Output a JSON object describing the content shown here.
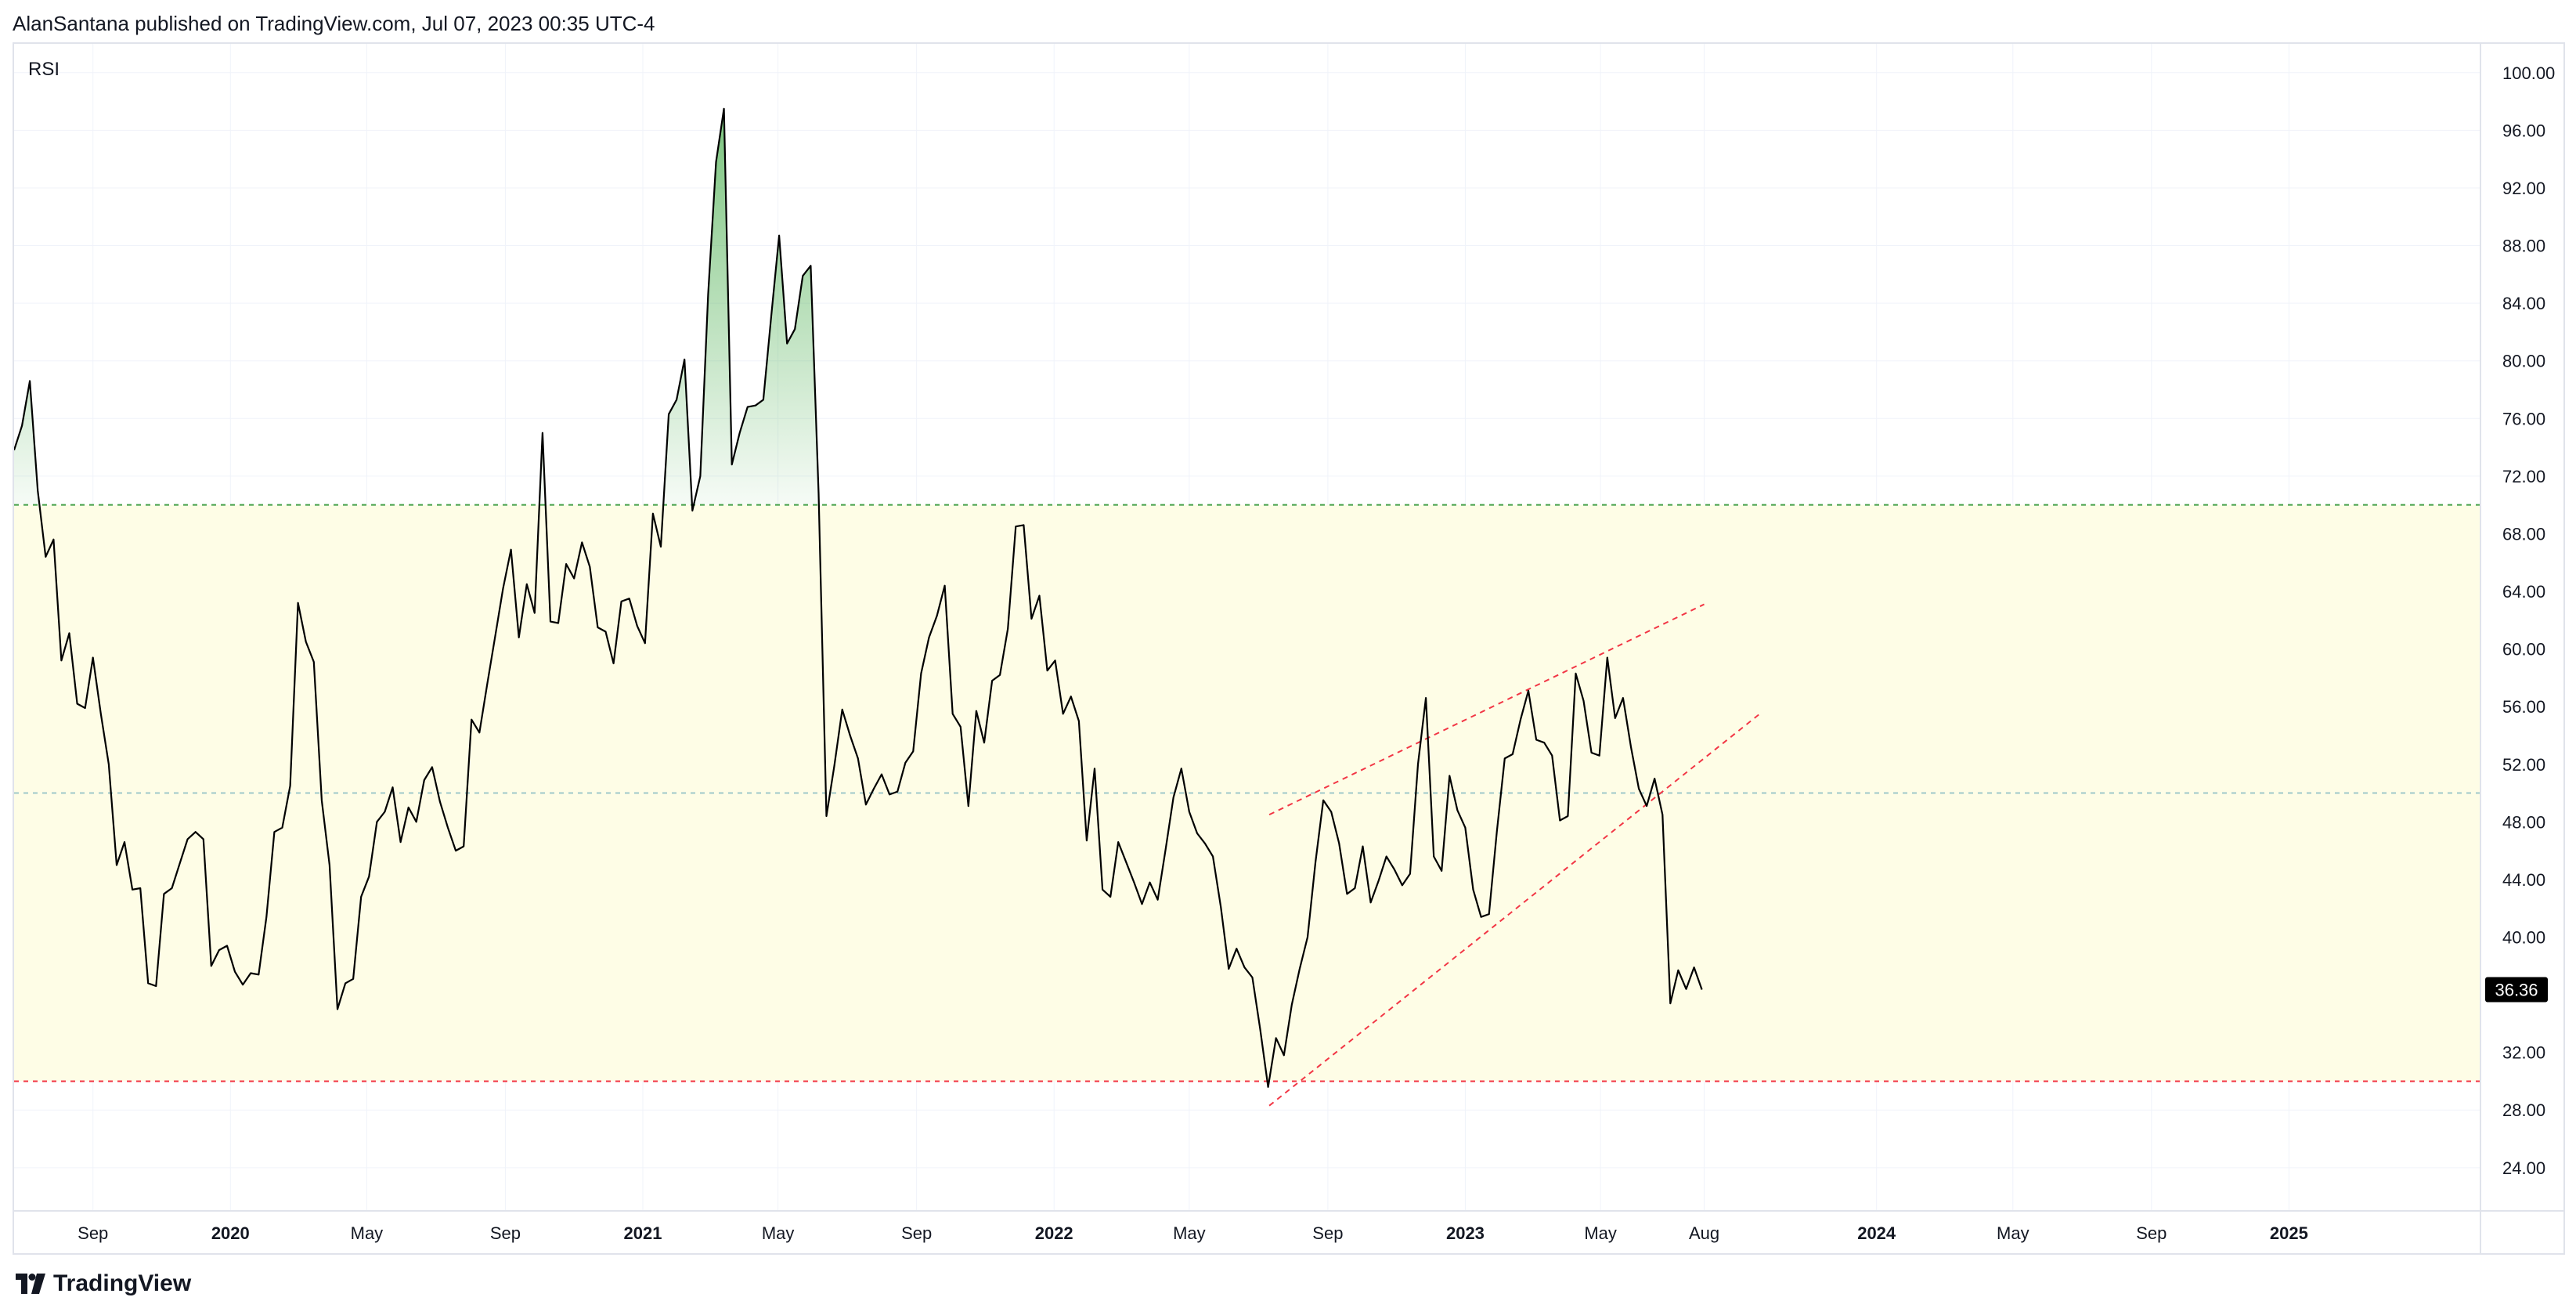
{
  "header": {
    "published_text": "AlanSantana published on TradingView.com, Jul 07, 2023 00:35 UTC-4"
  },
  "footer": {
    "brand": "TradingView",
    "logo_icon": "tradingview-logo-icon"
  },
  "chart_data": {
    "type": "line",
    "indicator_label": "RSI",
    "y_range": [
      21,
      102
    ],
    "y_ticks": [
      100,
      96,
      92,
      88,
      84,
      80,
      76,
      72,
      68,
      64,
      60,
      56,
      52,
      48,
      44,
      40,
      36,
      32,
      28,
      24
    ],
    "y_tick_labels": [
      "100.00",
      "96.00",
      "92.00",
      "88.00",
      "84.00",
      "80.00",
      "76.00",
      "72.00",
      "68.00",
      "64.00",
      "60.00",
      "56.00",
      "52.00",
      "48.00",
      "44.00",
      "40.00",
      "36.00",
      "32.00",
      "28.00",
      "24.00"
    ],
    "x_range": [
      "2019-06-23",
      "2025-06-20"
    ],
    "x_ticks": [
      {
        "date": "2019-09-01",
        "label": "Sep",
        "major": false
      },
      {
        "date": "2020-01-01",
        "label": "2020",
        "major": true
      },
      {
        "date": "2020-05-01",
        "label": "May",
        "major": false
      },
      {
        "date": "2020-09-01",
        "label": "Sep",
        "major": false
      },
      {
        "date": "2021-01-01",
        "label": "2021",
        "major": true
      },
      {
        "date": "2021-05-01",
        "label": "May",
        "major": false
      },
      {
        "date": "2021-09-01",
        "label": "Sep",
        "major": false
      },
      {
        "date": "2022-01-01",
        "label": "2022",
        "major": true
      },
      {
        "date": "2022-05-01",
        "label": "May",
        "major": false
      },
      {
        "date": "2022-09-01",
        "label": "Sep",
        "major": false
      },
      {
        "date": "2023-01-01",
        "label": "2023",
        "major": true
      },
      {
        "date": "2023-05-01",
        "label": "May",
        "major": false
      },
      {
        "date": "2023-08-01",
        "label": "Aug",
        "major": false
      },
      {
        "date": "2024-01-01",
        "label": "2024",
        "major": true
      },
      {
        "date": "2024-05-01",
        "label": "May",
        "major": false
      },
      {
        "date": "2024-09-01",
        "label": "Sep",
        "major": false
      },
      {
        "date": "2025-01-01",
        "label": "2025",
        "major": true
      }
    ],
    "bands": {
      "upper": 70,
      "middle": 50,
      "lower": 30
    },
    "last_value": 36.36,
    "last_value_label": "36.36",
    "colors": {
      "line": "#000000",
      "band_fill": "#fefde6",
      "upper_line": "#43a047",
      "middle_line": "#9ec9c9",
      "lower_line": "#f23645",
      "overbought_fill": "#4caf50",
      "trendline": "#f23645",
      "last_value_bg": "#000000",
      "grid": "#f0f3fa"
    },
    "series": [
      {
        "values": [
          [
            "2019-06-23",
            73.8
          ],
          [
            "2019-06-30",
            75.5
          ],
          [
            "2019-07-07",
            78.6
          ],
          [
            "2019-07-14",
            71.0
          ],
          [
            "2019-07-21",
            66.4
          ],
          [
            "2019-07-28",
            67.6
          ],
          [
            "2019-08-04",
            59.2
          ],
          [
            "2019-08-11",
            61.1
          ],
          [
            "2019-08-18",
            56.2
          ],
          [
            "2019-08-25",
            55.9
          ],
          [
            "2019-09-01",
            59.4
          ],
          [
            "2019-09-08",
            55.5
          ],
          [
            "2019-09-15",
            52.0
          ],
          [
            "2019-09-22",
            45.0
          ],
          [
            "2019-09-29",
            46.6
          ],
          [
            "2019-10-06",
            43.3
          ],
          [
            "2019-10-13",
            43.4
          ],
          [
            "2019-10-20",
            36.8
          ],
          [
            "2019-10-27",
            36.6
          ],
          [
            "2019-11-03",
            43.0
          ],
          [
            "2019-11-10",
            43.4
          ],
          [
            "2019-11-17",
            45.1
          ],
          [
            "2019-11-24",
            46.8
          ],
          [
            "2019-12-01",
            47.3
          ],
          [
            "2019-12-08",
            46.8
          ],
          [
            "2019-12-15",
            38.0
          ],
          [
            "2019-12-22",
            39.1
          ],
          [
            "2019-12-29",
            39.4
          ],
          [
            "2020-01-05",
            37.6
          ],
          [
            "2020-01-12",
            36.7
          ],
          [
            "2020-01-19",
            37.5
          ],
          [
            "2020-01-26",
            37.4
          ],
          [
            "2020-02-02",
            41.4
          ],
          [
            "2020-02-09",
            47.3
          ],
          [
            "2020-02-16",
            47.6
          ],
          [
            "2020-02-23",
            50.5
          ],
          [
            "2020-03-01",
            63.2
          ],
          [
            "2020-03-08",
            60.5
          ],
          [
            "2020-03-15",
            59.1
          ],
          [
            "2020-03-22",
            49.5
          ],
          [
            "2020-03-29",
            45.0
          ],
          [
            "2020-04-05",
            35.0
          ],
          [
            "2020-04-12",
            36.8
          ],
          [
            "2020-04-19",
            37.1
          ],
          [
            "2020-04-26",
            42.8
          ],
          [
            "2020-05-03",
            44.2
          ],
          [
            "2020-05-10",
            48.0
          ],
          [
            "2020-05-17",
            48.7
          ],
          [
            "2020-05-24",
            50.4
          ],
          [
            "2020-05-31",
            46.6
          ],
          [
            "2020-06-07",
            49.0
          ],
          [
            "2020-06-14",
            48.0
          ],
          [
            "2020-06-21",
            50.9
          ],
          [
            "2020-06-28",
            51.8
          ],
          [
            "2020-07-05",
            49.4
          ],
          [
            "2020-07-12",
            47.6
          ],
          [
            "2020-07-19",
            46.0
          ],
          [
            "2020-07-26",
            46.3
          ],
          [
            "2020-08-02",
            55.1
          ],
          [
            "2020-08-09",
            54.2
          ],
          [
            "2020-08-16",
            57.6
          ],
          [
            "2020-08-23",
            60.9
          ],
          [
            "2020-08-30",
            64.2
          ],
          [
            "2020-09-06",
            66.9
          ],
          [
            "2020-09-13",
            60.8
          ],
          [
            "2020-09-20",
            64.5
          ],
          [
            "2020-09-27",
            62.5
          ],
          [
            "2020-10-04",
            75.0
          ],
          [
            "2020-10-11",
            61.9
          ],
          [
            "2020-10-18",
            61.8
          ],
          [
            "2020-10-25",
            65.9
          ],
          [
            "2020-11-01",
            64.9
          ],
          [
            "2020-11-08",
            67.4
          ],
          [
            "2020-11-15",
            65.7
          ],
          [
            "2020-11-22",
            61.5
          ],
          [
            "2020-11-29",
            61.2
          ],
          [
            "2020-12-06",
            59.0
          ],
          [
            "2020-12-13",
            63.3
          ],
          [
            "2020-12-20",
            63.5
          ],
          [
            "2020-12-27",
            61.6
          ],
          [
            "2021-01-03",
            60.4
          ],
          [
            "2021-01-10",
            69.4
          ],
          [
            "2021-01-17",
            67.1
          ],
          [
            "2021-01-24",
            76.3
          ],
          [
            "2021-01-31",
            77.3
          ],
          [
            "2021-02-07",
            80.1
          ],
          [
            "2021-02-14",
            69.6
          ],
          [
            "2021-02-21",
            72.0
          ],
          [
            "2021-02-28",
            84.6
          ],
          [
            "2021-03-07",
            93.8
          ],
          [
            "2021-03-14",
            97.5
          ],
          [
            "2021-03-21",
            72.8
          ],
          [
            "2021-03-28",
            75.0
          ],
          [
            "2021-04-04",
            76.8
          ],
          [
            "2021-04-11",
            76.9
          ],
          [
            "2021-04-18",
            77.3
          ],
          [
            "2021-04-25",
            83.1
          ],
          [
            "2021-05-02",
            88.7
          ],
          [
            "2021-05-09",
            81.2
          ],
          [
            "2021-05-16",
            82.2
          ],
          [
            "2021-05-23",
            85.9
          ],
          [
            "2021-05-30",
            86.6
          ],
          [
            "2021-06-06",
            70.8
          ],
          [
            "2021-06-13",
            48.4
          ],
          [
            "2021-06-20",
            51.9
          ],
          [
            "2021-06-27",
            55.8
          ],
          [
            "2021-07-04",
            54.0
          ],
          [
            "2021-07-11",
            52.4
          ],
          [
            "2021-07-18",
            49.2
          ],
          [
            "2021-07-25",
            50.3
          ],
          [
            "2021-08-01",
            51.3
          ],
          [
            "2021-08-08",
            49.9
          ],
          [
            "2021-08-15",
            50.1
          ],
          [
            "2021-08-22",
            52.1
          ],
          [
            "2021-08-29",
            52.9
          ],
          [
            "2021-09-05",
            58.3
          ],
          [
            "2021-09-12",
            60.8
          ],
          [
            "2021-09-19",
            62.3
          ],
          [
            "2021-09-26",
            64.4
          ],
          [
            "2021-10-03",
            55.5
          ],
          [
            "2021-10-10",
            54.6
          ],
          [
            "2021-10-17",
            49.1
          ],
          [
            "2021-10-24",
            55.7
          ],
          [
            "2021-10-31",
            53.5
          ],
          [
            "2021-11-07",
            57.8
          ],
          [
            "2021-11-14",
            58.2
          ],
          [
            "2021-11-21",
            61.4
          ],
          [
            "2021-11-28",
            68.5
          ],
          [
            "2021-12-05",
            68.6
          ],
          [
            "2021-12-12",
            62.1
          ],
          [
            "2021-12-19",
            63.7
          ],
          [
            "2021-12-26",
            58.5
          ],
          [
            "2022-01-02",
            59.2
          ],
          [
            "2022-01-09",
            55.5
          ],
          [
            "2022-01-16",
            56.7
          ],
          [
            "2022-01-23",
            55.0
          ],
          [
            "2022-01-30",
            46.7
          ],
          [
            "2022-02-06",
            51.7
          ],
          [
            "2022-02-13",
            43.3
          ],
          [
            "2022-02-20",
            42.8
          ],
          [
            "2022-02-27",
            46.6
          ],
          [
            "2022-03-06",
            45.2
          ],
          [
            "2022-03-13",
            43.8
          ],
          [
            "2022-03-20",
            42.3
          ],
          [
            "2022-03-27",
            43.8
          ],
          [
            "2022-04-03",
            42.6
          ],
          [
            "2022-04-10",
            46.1
          ],
          [
            "2022-04-17",
            49.7
          ],
          [
            "2022-04-24",
            51.7
          ],
          [
            "2022-05-01",
            48.7
          ],
          [
            "2022-05-08",
            47.2
          ],
          [
            "2022-05-15",
            46.5
          ],
          [
            "2022-05-22",
            45.6
          ],
          [
            "2022-05-29",
            42.1
          ],
          [
            "2022-06-05",
            37.8
          ],
          [
            "2022-06-12",
            39.2
          ],
          [
            "2022-06-19",
            37.9
          ],
          [
            "2022-06-26",
            37.2
          ],
          [
            "2022-07-03",
            33.6
          ],
          [
            "2022-07-10",
            29.6
          ],
          [
            "2022-07-17",
            33.0
          ],
          [
            "2022-07-24",
            31.8
          ],
          [
            "2022-07-31",
            35.3
          ],
          [
            "2022-08-07",
            37.8
          ],
          [
            "2022-08-14",
            40.0
          ],
          [
            "2022-08-21",
            45.2
          ],
          [
            "2022-08-28",
            49.5
          ],
          [
            "2022-09-04",
            48.7
          ],
          [
            "2022-09-11",
            46.5
          ],
          [
            "2022-09-18",
            43.0
          ],
          [
            "2022-09-25",
            43.4
          ],
          [
            "2022-10-02",
            46.3
          ],
          [
            "2022-10-09",
            42.4
          ],
          [
            "2022-10-16",
            43.9
          ],
          [
            "2022-10-23",
            45.6
          ],
          [
            "2022-10-30",
            44.7
          ],
          [
            "2022-11-06",
            43.6
          ],
          [
            "2022-11-13",
            44.4
          ],
          [
            "2022-11-20",
            52.0
          ],
          [
            "2022-11-27",
            56.6
          ],
          [
            "2022-12-04",
            45.6
          ],
          [
            "2022-12-11",
            44.6
          ],
          [
            "2022-12-18",
            51.2
          ],
          [
            "2022-12-25",
            48.8
          ],
          [
            "2023-01-01",
            47.6
          ],
          [
            "2023-01-08",
            43.3
          ],
          [
            "2023-01-15",
            41.4
          ],
          [
            "2023-01-22",
            41.6
          ],
          [
            "2023-01-29",
            47.3
          ],
          [
            "2023-02-05",
            52.4
          ],
          [
            "2023-02-12",
            52.7
          ],
          [
            "2023-02-19",
            55.1
          ],
          [
            "2023-02-26",
            57.1
          ],
          [
            "2023-03-05",
            53.7
          ],
          [
            "2023-03-12",
            53.5
          ],
          [
            "2023-03-19",
            52.6
          ],
          [
            "2023-03-26",
            48.1
          ],
          [
            "2023-04-02",
            48.4
          ],
          [
            "2023-04-09",
            58.3
          ],
          [
            "2023-04-16",
            56.4
          ],
          [
            "2023-04-23",
            52.8
          ],
          [
            "2023-04-30",
            52.6
          ],
          [
            "2023-05-07",
            59.4
          ],
          [
            "2023-05-14",
            55.2
          ],
          [
            "2023-05-21",
            56.6
          ],
          [
            "2023-05-28",
            53.2
          ],
          [
            "2023-06-04",
            50.3
          ],
          [
            "2023-06-11",
            49.1
          ],
          [
            "2023-06-18",
            51.0
          ],
          [
            "2023-06-25",
            48.5
          ],
          [
            "2023-07-02",
            35.4
          ],
          [
            "2023-07-09",
            37.7
          ],
          [
            "2023-07-16",
            36.4
          ],
          [
            "2023-07-23",
            37.9
          ],
          [
            "2023-07-30",
            36.36
          ]
        ]
      }
    ],
    "trendlines": [
      {
        "start": [
          "2022-07-11",
          48.5
        ],
        "end": [
          "2023-08-01",
          63.1
        ]
      },
      {
        "start": [
          "2022-07-11",
          28.3
        ],
        "end": [
          "2023-09-21",
          55.6
        ]
      }
    ]
  }
}
